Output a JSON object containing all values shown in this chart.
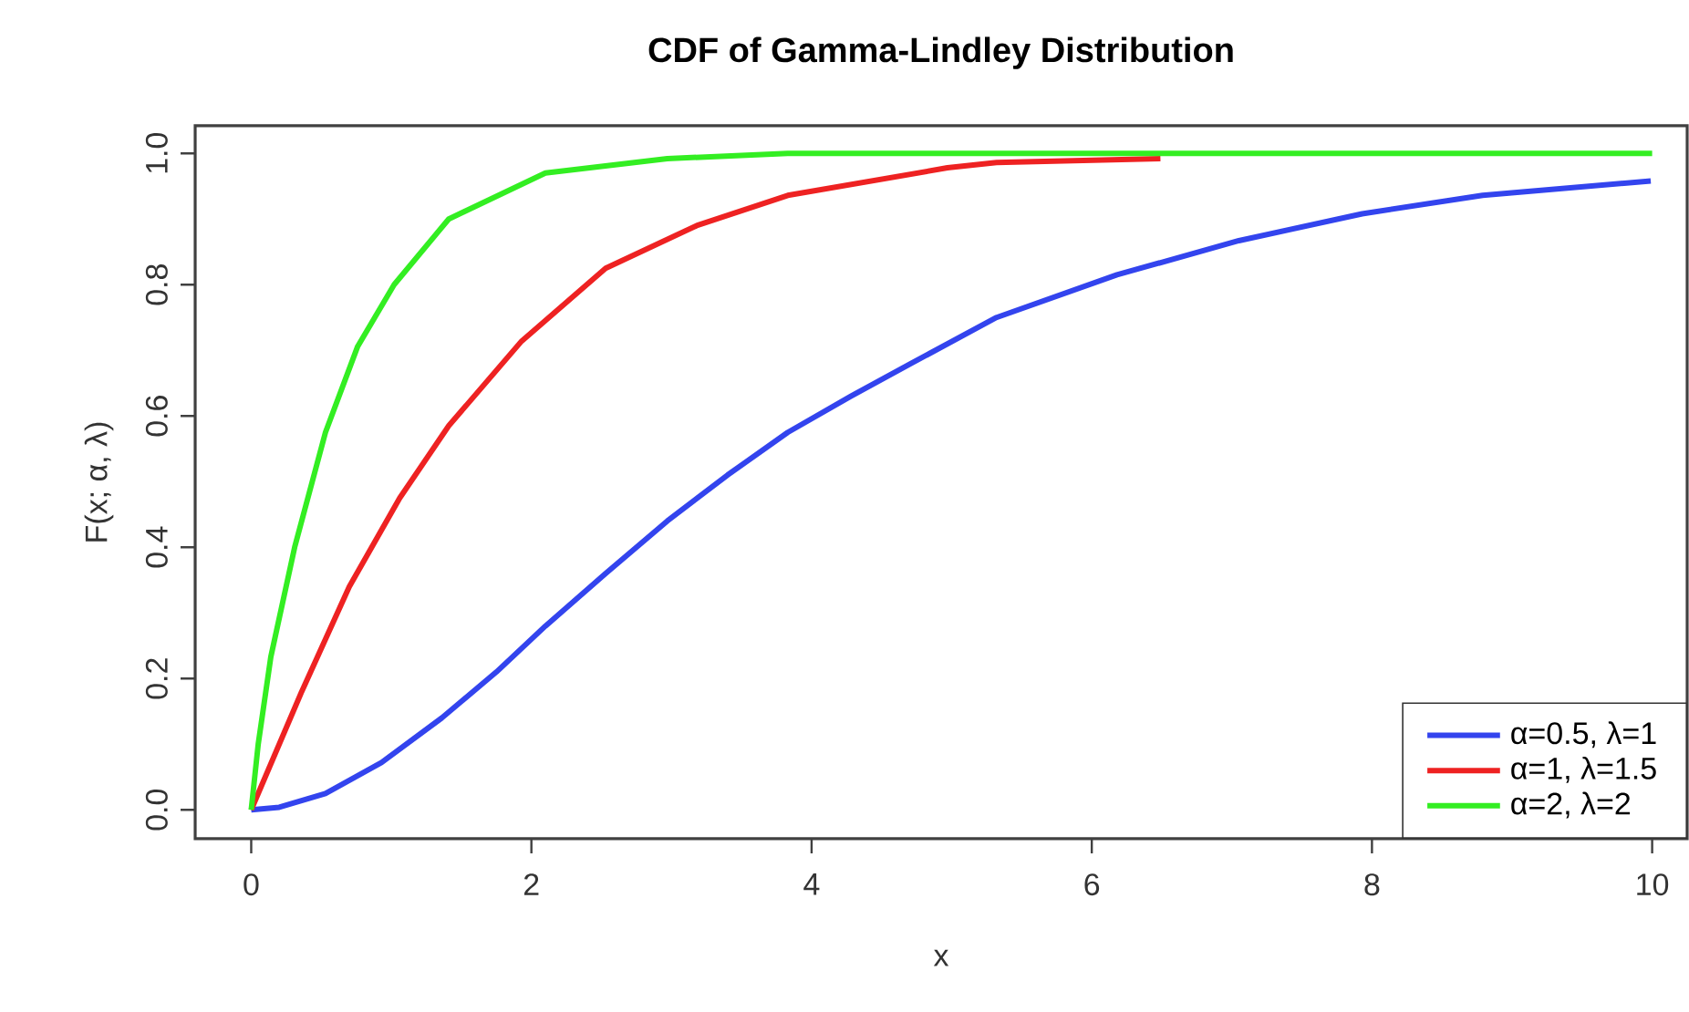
{
  "chart_data": {
    "type": "line",
    "title": "CDF of Gamma-Lindley Distribution",
    "xlabel": "x",
    "ylabel": "F(x; α, λ)",
    "xlim": [
      -0.4,
      10.25
    ],
    "ylim": [
      -0.044,
      1.042
    ],
    "xticks": [
      0,
      2,
      4,
      6,
      8,
      10
    ],
    "yticks": [
      {
        "value": 0,
        "label": "0.0"
      },
      {
        "value": 0.2,
        "label": "0.2"
      },
      {
        "value": 0.4,
        "label": "0.4"
      },
      {
        "value": 0.6,
        "label": "0.6"
      },
      {
        "value": 0.8,
        "label": "0.8"
      },
      {
        "value": 1,
        "label": "1.0"
      }
    ],
    "grid": false,
    "legend": "bottom right",
    "line_style": "solid",
    "marker": "none",
    "series": [
      {
        "name": "α=0.5, λ=1",
        "color": "#3344ee",
        "x": [
          0,
          0.2,
          0.53,
          0.93,
          1.36,
          1.75,
          2.1,
          2.53,
          2.97,
          3.4,
          3.83,
          4.28,
          4.71,
          5.32,
          6.18,
          7.05,
          7.93,
          8.79,
          9.99
        ],
        "values": [
          0,
          0.004,
          0.025,
          0.072,
          0.14,
          0.21,
          0.28,
          0.36,
          0.44,
          0.51,
          0.575,
          0.63,
          0.68,
          0.75,
          0.815,
          0.867,
          0.908,
          0.936,
          0.958
        ]
      },
      {
        "name": "α=1, λ=1.5",
        "color": "#ee2222",
        "x": [
          0,
          0.36,
          0.7,
          1.06,
          1.41,
          1.93,
          2.53,
          3.18,
          3.83,
          4.97,
          5.32,
          6.49
        ],
        "values": [
          0,
          0.18,
          0.34,
          0.475,
          0.585,
          0.714,
          0.825,
          0.89,
          0.936,
          0.978,
          0.986,
          0.992
        ]
      },
      {
        "name": "α=2, λ=2",
        "color": "#33ee22",
        "x": [
          0,
          0.05,
          0.14,
          0.31,
          0.53,
          0.76,
          1.02,
          1.41,
          2.1,
          2.97,
          3.83,
          10
        ],
        "values": [
          0,
          0.1,
          0.233,
          0.4,
          0.575,
          0.706,
          0.8,
          0.9,
          0.97,
          0.992,
          1.0,
          1.0
        ]
      }
    ]
  }
}
